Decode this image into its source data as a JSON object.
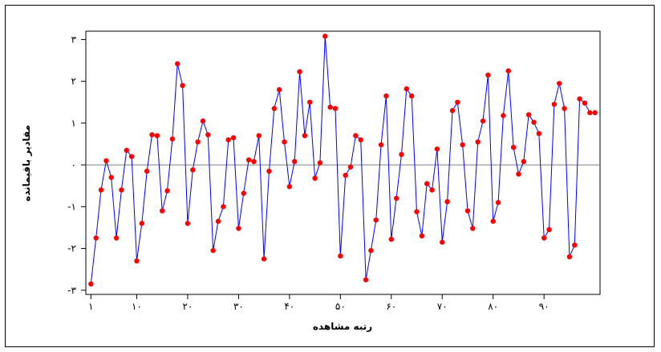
{
  "chart_data": {
    "type": "line",
    "title": "",
    "xlabel": "رتبه مشاهده",
    "ylabel": "مقادیر باقیمانده",
    "xlim": [
      0,
      101
    ],
    "ylim": [
      -3.1,
      3.2
    ],
    "x_ticks": [
      {
        "value": 1,
        "label": "۱"
      },
      {
        "value": 10,
        "label": "۱۰"
      },
      {
        "value": 20,
        "label": "۲۰"
      },
      {
        "value": 30,
        "label": "۳۰"
      },
      {
        "value": 40,
        "label": "۴۰"
      },
      {
        "value": 50,
        "label": "۵۰"
      },
      {
        "value": 60,
        "label": "۶۰"
      },
      {
        "value": 70,
        "label": "۷۰"
      },
      {
        "value": 80,
        "label": "۸۰"
      },
      {
        "value": 90,
        "label": "۹۰"
      }
    ],
    "y_ticks": [
      {
        "value": -3,
        "label": "-۳"
      },
      {
        "value": -2,
        "label": "-۲"
      },
      {
        "value": -1,
        "label": "-۱"
      },
      {
        "value": 0,
        "label": "۰"
      },
      {
        "value": 1,
        "label": "۱"
      },
      {
        "value": 2,
        "label": "۲"
      },
      {
        "value": 3,
        "label": "۳"
      }
    ],
    "reference_line": 0,
    "line_color": "#0000ff",
    "marker_color": "#ff0000",
    "reference_color": "#808080",
    "x": [
      1,
      2,
      3,
      4,
      5,
      6,
      7,
      8,
      9,
      10,
      11,
      12,
      13,
      14,
      15,
      16,
      17,
      18,
      19,
      20,
      21,
      22,
      23,
      24,
      25,
      26,
      27,
      28,
      29,
      30,
      31,
      32,
      33,
      34,
      35,
      36,
      37,
      38,
      39,
      40,
      41,
      42,
      43,
      44,
      45,
      46,
      47,
      48,
      49,
      50,
      51,
      52,
      53,
      54,
      55,
      56,
      57,
      58,
      59,
      60,
      61,
      62,
      63,
      64,
      65,
      66,
      67,
      68,
      69,
      70,
      71,
      72,
      73,
      74,
      75,
      76,
      77,
      78,
      79,
      80,
      81,
      82,
      83,
      84,
      85,
      86,
      87,
      88,
      89,
      90,
      91,
      92,
      93,
      94,
      95,
      96,
      97,
      98,
      99,
      100
    ],
    "y": [
      -2.85,
      -1.75,
      -0.6,
      0.1,
      -0.3,
      -1.75,
      -0.6,
      0.35,
      0.2,
      -2.3,
      -1.4,
      -0.15,
      0.72,
      0.7,
      -1.1,
      -0.62,
      0.62,
      2.42,
      1.9,
      -1.4,
      -0.12,
      0.55,
      1.05,
      0.72,
      -2.05,
      -1.35,
      -1.0,
      0.6,
      0.65,
      -1.52,
      -0.68,
      0.12,
      0.08,
      0.7,
      -2.25,
      -0.15,
      1.35,
      1.8,
      0.55,
      -0.52,
      0.08,
      2.23,
      0.7,
      1.5,
      -0.32,
      0.05,
      3.08,
      1.38,
      1.35,
      -2.18,
      -0.25,
      -0.05,
      0.7,
      0.6,
      -2.75,
      -2.05,
      -1.32,
      0.48,
      1.65,
      -1.78,
      -0.8,
      0.25,
      1.82,
      1.65,
      -1.12,
      -1.7,
      -0.45,
      -0.6,
      0.38,
      -1.85,
      -0.88,
      1.3,
      1.5,
      0.48,
      -1.1,
      -1.52,
      0.55,
      1.05,
      2.15,
      -1.35,
      -0.9,
      1.18,
      2.25,
      0.42,
      -0.22,
      0.08,
      1.2,
      1.02,
      0.75,
      -1.75,
      -1.55,
      1.45,
      1.95,
      1.35,
      -2.2,
      -1.92,
      1.58,
      1.48,
      1.25,
      1.25
    ]
  }
}
